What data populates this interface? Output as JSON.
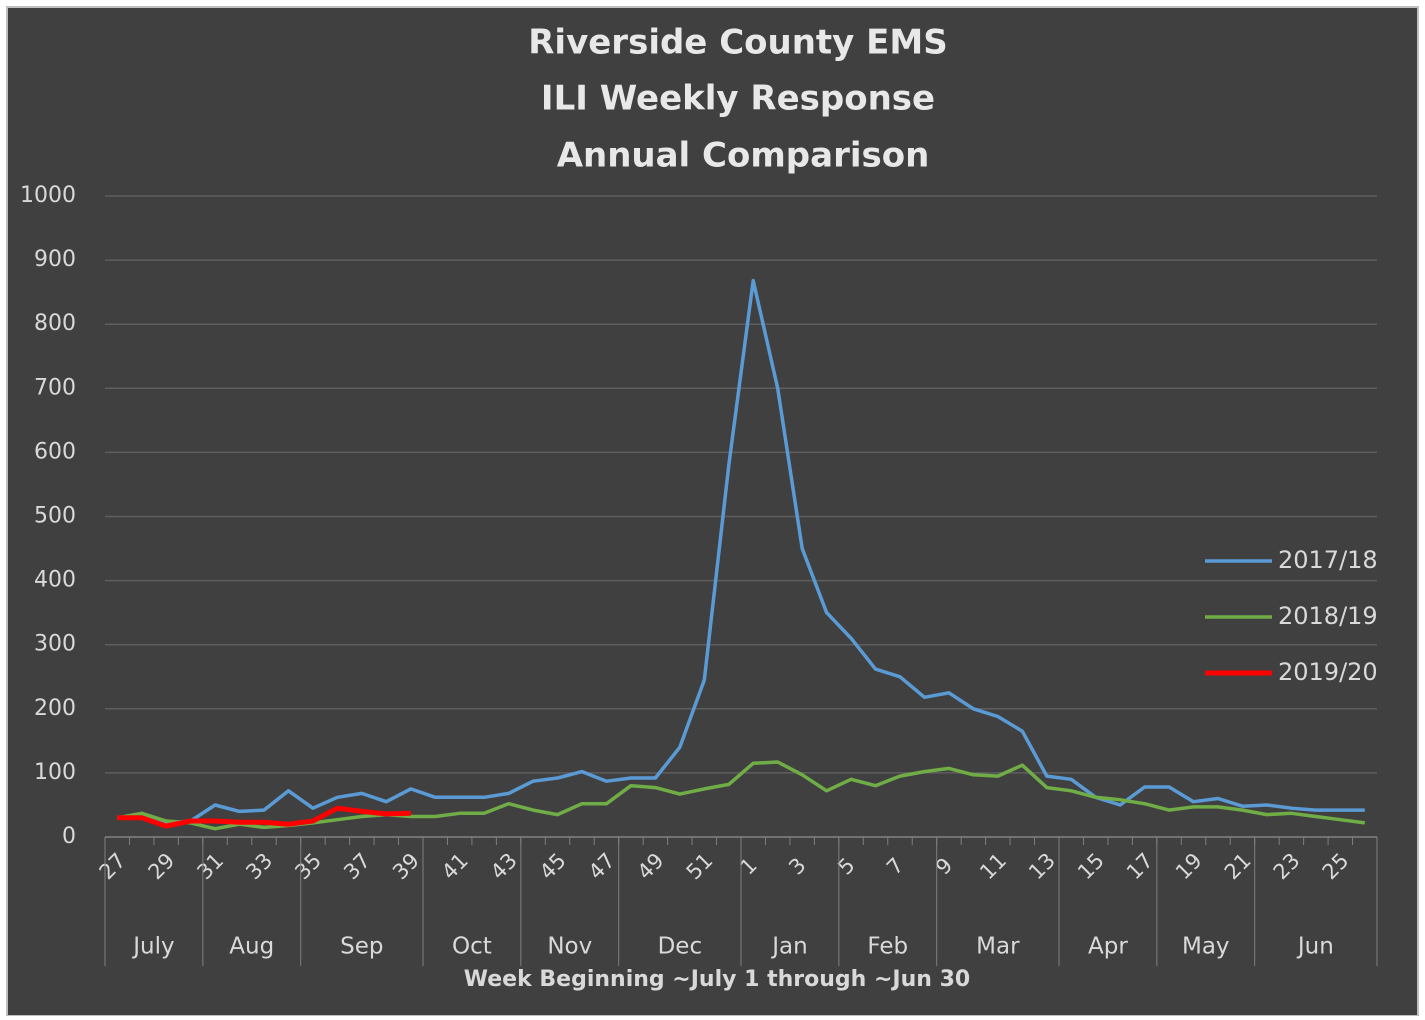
{
  "chart_data": {
    "type": "line",
    "title": [
      "Riverside County EMS",
      "ILI Weekly Response",
      "Annual Comparison"
    ],
    "x_label": "Week Beginning ~July 1 through ~Jun 30",
    "categories": [
      "27",
      null,
      "29",
      null,
      "31",
      null,
      "33",
      null,
      "35",
      null,
      "37",
      null,
      "39",
      null,
      "41",
      null,
      "43",
      null,
      "45",
      null,
      "47",
      null,
      "49",
      null,
      "51",
      null,
      "1",
      null,
      "3",
      null,
      "5",
      null,
      "7",
      null,
      "9",
      null,
      "11",
      null,
      "13",
      null,
      "15",
      null,
      "17",
      null,
      "19",
      null,
      "21",
      null,
      "23",
      null,
      "25",
      null
    ],
    "category_groups": [
      {
        "label": "July",
        "count": 4
      },
      {
        "label": "Aug",
        "count": 4
      },
      {
        "label": "Sep",
        "count": 5
      },
      {
        "label": "Oct",
        "count": 4
      },
      {
        "label": "Nov",
        "count": 4
      },
      {
        "label": "Dec",
        "count": 5
      },
      {
        "label": "Jan",
        "count": 4
      },
      {
        "label": "Feb",
        "count": 4
      },
      {
        "label": "Mar",
        "count": 5
      },
      {
        "label": "Apr",
        "count": 4
      },
      {
        "label": "May",
        "count": 4
      },
      {
        "label": "Jun",
        "count": 5
      }
    ],
    "series": [
      {
        "name": "2017/18",
        "color": "#5b9bd5",
        "values": [
          30,
          35,
          22,
          25,
          50,
          40,
          42,
          72,
          45,
          62,
          68,
          55,
          75,
          62,
          62,
          62,
          68,
          87,
          92,
          102,
          87,
          92,
          92,
          140,
          245,
          580,
          868,
          700,
          450,
          350,
          310,
          262,
          250,
          218,
          225,
          200,
          188,
          165,
          95,
          90,
          62,
          50,
          78,
          78,
          55,
          60,
          48,
          50,
          45,
          42,
          42,
          42
        ]
      },
      {
        "name": "2018/19",
        "color": "#70ad47",
        "values": [
          30,
          37,
          25,
          22,
          13,
          20,
          15,
          18,
          22,
          27,
          32,
          35,
          32,
          32,
          37,
          37,
          52,
          42,
          35,
          52,
          52,
          80,
          77,
          67,
          75,
          82,
          115,
          117,
          97,
          72,
          90,
          80,
          95,
          102,
          107,
          97,
          95,
          112,
          77,
          72,
          62,
          58,
          52,
          42,
          47,
          47,
          42,
          35,
          37,
          32,
          27,
          22
        ]
      },
      {
        "name": "2019/20",
        "color": "#ff0000",
        "values": [
          30,
          30,
          17,
          25,
          25,
          23,
          23,
          20,
          25,
          45,
          40,
          36,
          37,
          null,
          null,
          null,
          null,
          null,
          null,
          null,
          null,
          null,
          null,
          null,
          null,
          null,
          null,
          null,
          null,
          null,
          null,
          null,
          null,
          null,
          null,
          null,
          null,
          null,
          null,
          null,
          null,
          null,
          null,
          null,
          null,
          null,
          null,
          null,
          null,
          null,
          null,
          null
        ]
      }
    ],
    "ylim": [
      0,
      1000
    ],
    "yticks": [
      0,
      100,
      200,
      300,
      400,
      500,
      600,
      700,
      800,
      900,
      1000
    ],
    "grid": true,
    "legend": "right"
  }
}
